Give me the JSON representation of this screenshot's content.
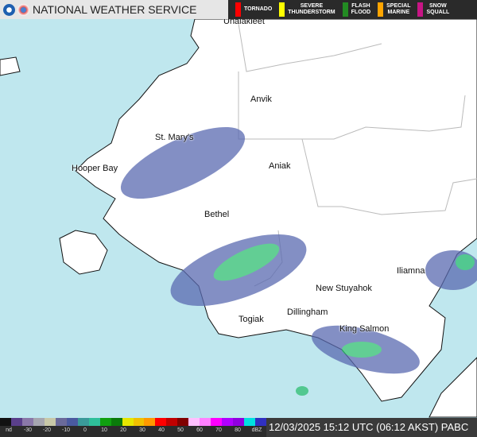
{
  "header": {
    "title": "NATIONAL WEATHER SERVICE",
    "warnings": [
      {
        "label": "TORNADO",
        "color": "#ff0000"
      },
      {
        "label": "SEVERE\nTHUNDERSTORM",
        "color": "#ffff00"
      },
      {
        "label": "FLASH\nFLOOD",
        "color": "#228b22"
      },
      {
        "label": "SPECIAL\nMARINE",
        "color": "#ffa500"
      },
      {
        "label": "SNOW\nSQUALL",
        "color": "#c71585"
      }
    ]
  },
  "places": [
    "Unalakleet",
    "Anvik",
    "St. Mary's",
    "Hooper Bay",
    "Aniak",
    "Bethel",
    "Iliamna",
    "New Stuyahok",
    "Dillingham",
    "Togiak",
    "King Salmon"
  ],
  "legend": {
    "ticks": [
      "nd",
      "-30",
      "-20",
      "-10",
      "0",
      "10",
      "20",
      "30",
      "40",
      "50",
      "60",
      "70",
      "80",
      "dBZ"
    ],
    "colors": [
      "#111111",
      "#5a3f8a",
      "#8a78a8",
      "#a6a6b0",
      "#c8c8a8",
      "#6a6a9a",
      "#4a5aa0",
      "#3a9a9a",
      "#2ec09a",
      "#10a010",
      "#0a7a0a",
      "#e6e600",
      "#f0c000",
      "#ff9900",
      "#ff0000",
      "#c00000",
      "#800000",
      "#ffc0ff",
      "#ff80ff",
      "#ff00ff",
      "#b000ff",
      "#9000e0",
      "#00e0e0",
      "#3030c0"
    ]
  },
  "timestamp": "12/03/2025 15:12 UTC (06:12 AKST)  PABC",
  "colors": {
    "water": "#bfe7ee",
    "land": "#ffffff"
  }
}
